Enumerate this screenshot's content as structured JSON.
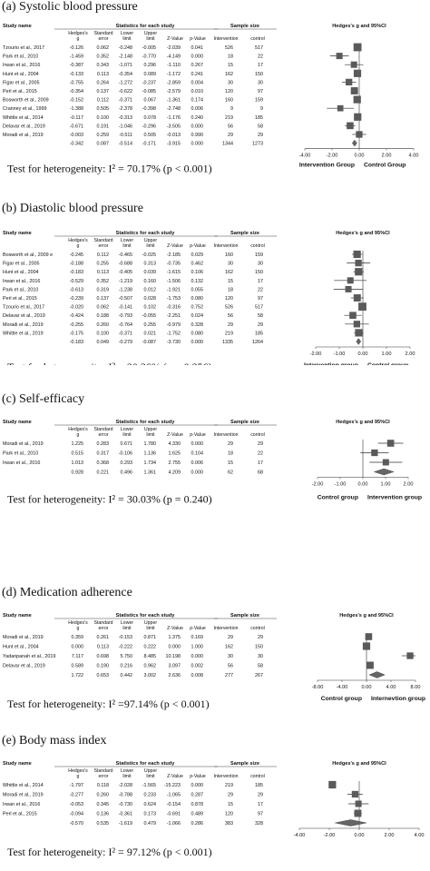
{
  "columns": {
    "study_name": "Study name",
    "stats_header": "Statistics for each study",
    "sample_header": "Sample size",
    "plot_header": "Hedges's g and 95%CI",
    "hedges_g": [
      "Hedges's",
      "g"
    ],
    "std_error": [
      "Standard",
      "error"
    ],
    "lower_limit": [
      "Lower",
      "limit"
    ],
    "upper_limit": [
      "Upper",
      "limit"
    ],
    "z_value": "Z-Value",
    "p_value": "p-Value",
    "intervention": "Intervention",
    "control": "control"
  },
  "chart_data": [
    {
      "type": "forest",
      "panel_title": "(a) Systolic blood pressure",
      "axis_ticks": [
        "-4.00",
        "-2.00",
        "0.00",
        "2.00",
        "4.00"
      ],
      "xlim": [
        -4,
        4
      ],
      "left_group": "Intervention Group",
      "right_group": "Control Group",
      "heterogeneity": "Test for heterogeneity: I² = 70.17% (p < 0.001)",
      "studies": [
        {
          "name": "Tzourio et al., 2017",
          "g": "-0.126",
          "se": "0.062",
          "lower": "-0.248",
          "upper": "-0.005",
          "z": "-2.039",
          "p": "0.041",
          "n_int": "526",
          "n_ctl": "517",
          "weight": 0.8
        },
        {
          "name": "Park et al., 2010",
          "g": "-1.459",
          "se": "0.352",
          "lower": "-2.148",
          "upper": "-0.770",
          "z": "-4.149",
          "p": "0.000",
          "n_int": "18",
          "n_ctl": "22",
          "weight": 0.5
        },
        {
          "name": "Irwan et al., 2016",
          "g": "-0.387",
          "se": "0.343",
          "lower": "-1.071",
          "upper": "0.296",
          "z": "-1.110",
          "p": "0.267",
          "n_int": "15",
          "n_ctl": "17",
          "weight": 0.5
        },
        {
          "name": "Hunt et al., 2004",
          "g": "-0.133",
          "se": "0.113",
          "lower": "-0.354",
          "upper": "0.089",
          "z": "-1.172",
          "p": "0.241",
          "n_int": "162",
          "n_ctl": "150",
          "weight": 0.7
        },
        {
          "name": "Figar et al., 2005",
          "g": "-0.755",
          "se": "0.264",
          "lower": "-1.272",
          "upper": "-0.237",
          "z": "-2.859",
          "p": "0.004",
          "n_int": "30",
          "n_ctl": "30",
          "weight": 0.55
        },
        {
          "name": "Perl et al., 2015",
          "g": "-0.354",
          "se": "0.137",
          "lower": "-0.622",
          "upper": "-0.085",
          "z": "-2.579",
          "p": "0.010",
          "n_int": "120",
          "n_ctl": "97",
          "weight": 0.65
        },
        {
          "name": "Bosworth et al., 2009",
          "g": "-0.152",
          "se": "0.112",
          "lower": "-0.371",
          "upper": "0.067",
          "z": "-1.361",
          "p": "0.174",
          "n_int": "160",
          "n_ctl": "159",
          "weight": 0.7
        },
        {
          "name": "Cranney et al., 1999",
          "g": "-1.388",
          "se": "0.505",
          "lower": "-2.378",
          "upper": "-0.398",
          "z": "-2.748",
          "p": "0.006",
          "n_int": "9",
          "n_ctl": "9",
          "weight": 0.45
        },
        {
          "name": "Whittle et al., 2014",
          "g": "-0.117",
          "se": "0.100",
          "lower": "-0.313",
          "upper": "0.078",
          "z": "-1.176",
          "p": "0.240",
          "n_int": "219",
          "n_ctl": "185",
          "weight": 0.7
        },
        {
          "name": "Delavar et al., 2019",
          "g": "-0.671",
          "se": "0.191",
          "lower": "-1.046",
          "upper": "-0.296",
          "z": "-3.505",
          "p": "0.000",
          "n_int": "56",
          "n_ctl": "58",
          "weight": 0.6
        },
        {
          "name": "Moradi et al., 2019",
          "g": "-0.003",
          "se": "0.259",
          "lower": "-0.511",
          "upper": "0.505",
          "z": "-0.013",
          "p": "0.990",
          "n_int": "29",
          "n_ctl": "29",
          "weight": 0.55
        }
      ],
      "summary": {
        "g": "-0.342",
        "se": "0.087",
        "lower": "-0.514",
        "upper": "-0.171",
        "z": "-3.915",
        "p": "0.000",
        "n_int": "1344",
        "n_ctl": "1273"
      }
    },
    {
      "type": "forest",
      "panel_title": "(b) Diastolic blood pressure",
      "axis_ticks": [
        "-2.00",
        "-1.00",
        "0.00",
        "1.00",
        "2.00"
      ],
      "xlim": [
        -2,
        2
      ],
      "left_group": "Intervention group",
      "right_group": "Control group",
      "heterogeneity": "Test for heterogeneity: I² = 20.36% (p = 0.256)",
      "studies": [
        {
          "name": "Bosworth et al., 2009 e",
          "g": "-0.245",
          "se": "0.112",
          "lower": "-0.465",
          "upper": "-0.025",
          "z": "-2.185",
          "p": "0.029",
          "n_int": "160",
          "n_ctl": "159",
          "weight": 0.7
        },
        {
          "name": "Figar et al., 2005",
          "g": "-0.188",
          "se": "0.255",
          "lower": "-0.688",
          "upper": "0.313",
          "z": "-0.735",
          "p": "0.462",
          "n_int": "30",
          "n_ctl": "30",
          "weight": 0.55
        },
        {
          "name": "Hunt et al., 2004",
          "g": "-0.183",
          "se": "0.113",
          "lower": "-0.405",
          "upper": "0.039",
          "z": "-1.615",
          "p": "0.106",
          "n_int": "162",
          "n_ctl": "150",
          "weight": 0.7
        },
        {
          "name": "Irwan et al., 2016",
          "g": "-0.529",
          "se": "0.352",
          "lower": "-1.219",
          "upper": "0.160",
          "z": "-1.506",
          "p": "0.132",
          "n_int": "15",
          "n_ctl": "17",
          "weight": 0.5
        },
        {
          "name": "Park et al., 2010",
          "g": "-0.613",
          "se": "0.319",
          "lower": "-1.238",
          "upper": "0.012",
          "z": "-1.921",
          "p": "0.055",
          "n_int": "18",
          "n_ctl": "22",
          "weight": 0.5
        },
        {
          "name": "Perl et al., 2015",
          "g": "-0.239",
          "se": "0.137",
          "lower": "-0.507",
          "upper": "0.028",
          "z": "-1.753",
          "p": "0.080",
          "n_int": "120",
          "n_ctl": "97",
          "weight": 0.65
        },
        {
          "name": "Tzourio et al., 2017",
          "g": "-0.020",
          "se": "0.062",
          "lower": "-0.141",
          "upper": "0.102",
          "z": "-0.316",
          "p": "0.752",
          "n_int": "526",
          "n_ctl": "517",
          "weight": 0.8
        },
        {
          "name": "Delavar et al., 2019",
          "g": "-0.424",
          "se": "0.188",
          "lower": "-0.793",
          "upper": "-0.055",
          "z": "-2.251",
          "p": "0.024",
          "n_int": "56",
          "n_ctl": "58",
          "weight": 0.6
        },
        {
          "name": "Moradi et al., 2019",
          "g": "-0.255",
          "se": "0.260",
          "lower": "-0.764",
          "upper": "0.255",
          "z": "-0.979",
          "p": "0.328",
          "n_int": "29",
          "n_ctl": "29",
          "weight": 0.55
        },
        {
          "name": "Whittle et al., 2019",
          "g": "-0.175",
          "se": "0.100",
          "lower": "-0.371",
          "upper": "0.021",
          "z": "-1.752",
          "p": "0.080",
          "n_int": "219",
          "n_ctl": "185",
          "weight": 0.7
        }
      ],
      "summary": {
        "g": "-0.183",
        "se": "0.049",
        "lower": "-0.279",
        "upper": "-0.087",
        "z": "-3.730",
        "p": "0.000",
        "n_int": "1335",
        "n_ctl": "1264"
      }
    },
    {
      "type": "forest",
      "panel_title": "(c) Self-efficacy",
      "axis_ticks": [
        "-2.00",
        "-1.00",
        "0.00",
        "1.00",
        "2.00"
      ],
      "xlim": [
        -2,
        2
      ],
      "left_group": "Control group",
      "right_group": "Intervention group",
      "heterogeneity": "Test for heterogeneity: I² = 30.03% (p = 0.240)",
      "studies": [
        {
          "name": "Moradi et al., 2019",
          "g": "1.225",
          "se": "0.283",
          "lower": "0.671",
          "upper": "1.780",
          "z": "4.330",
          "p": "0.000",
          "n_int": "29",
          "n_ctl": "29",
          "weight": 0.6
        },
        {
          "name": "Park et al., 2010",
          "g": "0.515",
          "se": "0.317",
          "lower": "-0.106",
          "upper": "1.136",
          "z": "1.625",
          "p": "0.104",
          "n_int": "18",
          "n_ctl": "22",
          "weight": 0.55
        },
        {
          "name": "Irwan et al., 2016",
          "g": "1.013",
          "se": "0.368",
          "lower": "0.293",
          "upper": "1.734",
          "z": "2.755",
          "p": "0.006",
          "n_int": "15",
          "n_ctl": "17",
          "weight": 0.5
        }
      ],
      "summary": {
        "g": "0.928",
        "se": "0.221",
        "lower": "0.496",
        "upper": "1.361",
        "z": "4.209",
        "p": "0.000",
        "n_int": "62",
        "n_ctl": "68"
      }
    },
    {
      "type": "forest",
      "panel_title": "(d) Medication adherence",
      "axis_ticks": [
        "-8.00",
        "-4.00",
        "0.00",
        "4.00",
        "8.00"
      ],
      "xlim": [
        -8,
        8
      ],
      "left_group": "Control group",
      "right_group": "Internevtion group",
      "heterogeneity": "Test for heterogeneity: I² =97.14% (p < 0.001)",
      "studies": [
        {
          "name": "Moradi et al., 2019",
          "g": "0.359",
          "se": "0.261",
          "lower": "-0.153",
          "upper": "0.871",
          "z": "1.375",
          "p": "0.169",
          "n_int": "29",
          "n_ctl": "29",
          "weight": 0.6
        },
        {
          "name": "Hunt et al., 2004",
          "g": "0.000",
          "se": "0.113",
          "lower": "-0.222",
          "upper": "0.222",
          "z": "0.000",
          "p": "1.000",
          "n_int": "162",
          "n_ctl": "150",
          "weight": 0.7
        },
        {
          "name": "Yadanpanah et al., 2019",
          "g": "7.117",
          "se": "0.698",
          "lower": "5.750",
          "upper": "8.485",
          "z": "10.198",
          "p": "0.000",
          "n_int": "30",
          "n_ctl": "30",
          "weight": 0.55
        },
        {
          "name": "Delavar et al., 2019",
          "g": "0.589",
          "se": "0.190",
          "lower": "0.216",
          "upper": "0.962",
          "z": "3.097",
          "p": "0.002",
          "n_int": "56",
          "n_ctl": "58",
          "weight": 0.65
        }
      ],
      "summary": {
        "g": "1.722",
        "se": "0.653",
        "lower": "0.442",
        "upper": "3.002",
        "z": "2.636",
        "p": "0.008",
        "n_int": "277",
        "n_ctl": "267"
      }
    },
    {
      "type": "forest",
      "panel_title": "(e) Body mass index",
      "axis_ticks": [
        "-4.00",
        "-2.00",
        "0.00",
        "2.00",
        "4.00"
      ],
      "xlim": [
        -4,
        4
      ],
      "left_group": "",
      "right_group": "",
      "heterogeneity": "Test for heterogeneity: I² = 97.12% (p < 0.001)",
      "studies": [
        {
          "name": "Whittle et al., 2014",
          "g": "-1.797",
          "se": "0.118",
          "lower": "-2.028",
          "upper": "-1.565",
          "z": "-15.223",
          "p": "0.000",
          "n_int": "219",
          "n_ctl": "185",
          "weight": 0.7
        },
        {
          "name": "Moradi et al., 2019",
          "g": "-0.277",
          "se": "0.260",
          "lower": "-0.788",
          "upper": "0.233",
          "z": "-1.065",
          "p": "0.287",
          "n_int": "29",
          "n_ctl": "29",
          "weight": 0.55
        },
        {
          "name": "Irwan et al., 2016",
          "g": "-0.053",
          "se": "0.345",
          "lower": "-0.730",
          "upper": "0.624",
          "z": "-0.154",
          "p": "0.878",
          "n_int": "15",
          "n_ctl": "17",
          "weight": 0.5
        },
        {
          "name": "Perl et al., 2015",
          "g": "-0.094",
          "se": "0.136",
          "lower": "-0.361",
          "upper": "0.173",
          "z": "-0.691",
          "p": "0.489",
          "n_int": "120",
          "n_ctl": "97",
          "weight": 0.65
        }
      ],
      "summary": {
        "g": "-0.570",
        "se": "0.535",
        "lower": "-1.619",
        "upper": "0.479",
        "z": "-1.066",
        "p": "0.286",
        "n_int": "383",
        "n_ctl": "328"
      }
    }
  ]
}
